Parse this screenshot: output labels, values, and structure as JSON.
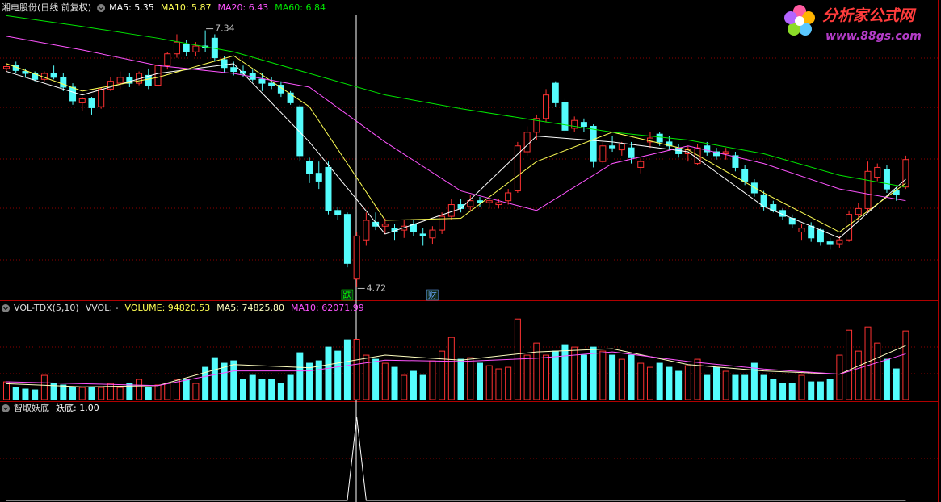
{
  "chart_data": [
    {
      "type": "candlestick",
      "title": "湘电股份(日线 前复权)",
      "up_color": "#ff3232",
      "down_color": "#54fcfc",
      "ylim": [
        4.6,
        7.65
      ],
      "candles": [
        [
          6.95,
          7.0,
          6.92,
          6.97
        ],
        [
          6.98,
          7.02,
          6.9,
          6.93
        ],
        [
          6.92,
          6.95,
          6.86,
          6.9
        ],
        [
          6.9,
          6.92,
          6.82,
          6.84
        ],
        [
          6.84,
          6.92,
          6.82,
          6.9
        ],
        [
          6.9,
          6.98,
          6.84,
          6.86
        ],
        [
          6.86,
          6.9,
          6.72,
          6.76
        ],
        [
          6.76,
          6.8,
          6.58,
          6.62
        ],
        [
          6.6,
          6.66,
          6.52,
          6.64
        ],
        [
          6.64,
          6.66,
          6.48,
          6.55
        ],
        [
          6.56,
          6.76,
          6.54,
          6.74
        ],
        [
          6.74,
          6.86,
          6.72,
          6.82
        ],
        [
          6.8,
          6.92,
          6.74,
          6.86
        ],
        [
          6.86,
          6.9,
          6.76,
          6.8
        ],
        [
          6.8,
          6.92,
          6.78,
          6.9
        ],
        [
          6.88,
          6.95,
          6.74,
          6.78
        ],
        [
          6.78,
          7.0,
          6.76,
          6.98
        ],
        [
          6.98,
          7.12,
          6.94,
          7.1
        ],
        [
          7.1,
          7.3,
          7.06,
          7.22
        ],
        [
          7.2,
          7.24,
          7.08,
          7.12
        ],
        [
          7.12,
          7.22,
          7.08,
          7.18
        ],
        [
          7.18,
          7.34,
          7.12,
          7.16
        ],
        [
          7.26,
          7.3,
          7.02,
          7.06
        ],
        [
          7.04,
          7.08,
          6.9,
          6.96
        ],
        [
          6.96,
          7.02,
          6.88,
          6.92
        ],
        [
          6.92,
          6.98,
          6.86,
          6.9
        ],
        [
          6.9,
          6.94,
          6.82,
          6.84
        ],
        [
          6.84,
          6.9,
          6.72,
          6.8
        ],
        [
          6.8,
          6.86,
          6.74,
          6.78
        ],
        [
          6.78,
          6.82,
          6.66,
          6.7
        ],
        [
          6.7,
          6.72,
          6.58,
          6.6
        ],
        [
          6.56,
          6.58,
          6.0,
          6.06
        ],
        [
          6.0,
          6.04,
          5.78,
          5.88
        ],
        [
          5.88,
          6.0,
          5.72,
          5.8
        ],
        [
          5.94,
          6.0,
          5.46,
          5.5
        ],
        [
          5.5,
          5.54,
          5.4,
          5.46
        ],
        [
          5.46,
          5.48,
          4.92,
          4.96
        ],
        [
          4.8,
          5.28,
          4.72,
          5.24
        ],
        [
          5.2,
          5.48,
          5.14,
          5.4
        ],
        [
          5.38,
          5.48,
          5.3,
          5.34
        ],
        [
          5.34,
          5.42,
          5.26,
          5.36
        ],
        [
          5.32,
          5.36,
          5.2,
          5.28
        ],
        [
          5.3,
          5.4,
          5.22,
          5.34
        ],
        [
          5.36,
          5.4,
          5.24,
          5.28
        ],
        [
          5.26,
          5.32,
          5.14,
          5.24
        ],
        [
          5.22,
          5.34,
          5.16,
          5.3
        ],
        [
          5.3,
          5.48,
          5.26,
          5.44
        ],
        [
          5.44,
          5.62,
          5.4,
          5.56
        ],
        [
          5.56,
          5.62,
          5.48,
          5.52
        ],
        [
          5.54,
          5.66,
          5.5,
          5.6
        ],
        [
          5.6,
          5.64,
          5.54,
          5.58
        ],
        [
          5.58,
          5.62,
          5.52,
          5.6
        ],
        [
          5.56,
          5.62,
          5.52,
          5.58
        ],
        [
          5.6,
          5.72,
          5.56,
          5.68
        ],
        [
          5.7,
          6.2,
          5.68,
          6.16
        ],
        [
          6.1,
          6.36,
          6.06,
          6.3
        ],
        [
          6.3,
          6.48,
          6.22,
          6.44
        ],
        [
          6.44,
          6.74,
          6.4,
          6.68
        ],
        [
          6.8,
          6.82,
          6.56,
          6.6
        ],
        [
          6.6,
          6.64,
          6.28,
          6.32
        ],
        [
          6.34,
          6.46,
          6.3,
          6.42
        ],
        [
          6.4,
          6.44,
          6.3,
          6.36
        ],
        [
          6.36,
          6.38,
          5.94,
          6.0
        ],
        [
          6.0,
          6.2,
          5.98,
          6.16
        ],
        [
          6.16,
          6.26,
          6.1,
          6.14
        ],
        [
          6.12,
          6.2,
          6.06,
          6.18
        ],
        [
          6.14,
          6.2,
          5.98,
          6.04
        ],
        [
          5.94,
          6.02,
          5.88,
          6.0
        ],
        [
          6.2,
          6.3,
          6.14,
          6.24
        ],
        [
          6.28,
          6.3,
          6.16,
          6.2
        ],
        [
          6.2,
          6.26,
          6.12,
          6.16
        ],
        [
          6.14,
          6.18,
          6.04,
          6.08
        ],
        [
          6.08,
          6.16,
          6.0,
          6.12
        ],
        [
          5.98,
          6.18,
          5.96,
          6.14
        ],
        [
          6.16,
          6.2,
          6.06,
          6.1
        ],
        [
          6.1,
          6.14,
          6.02,
          6.06
        ],
        [
          6.08,
          6.14,
          6.02,
          6.1
        ],
        [
          6.06,
          6.1,
          5.9,
          5.94
        ],
        [
          5.92,
          5.96,
          5.76,
          5.8
        ],
        [
          5.78,
          5.82,
          5.64,
          5.68
        ],
        [
          5.66,
          5.7,
          5.5,
          5.54
        ],
        [
          5.56,
          5.6,
          5.48,
          5.5
        ],
        [
          5.5,
          5.52,
          5.4,
          5.44
        ],
        [
          5.42,
          5.46,
          5.32,
          5.36
        ],
        [
          5.28,
          5.36,
          5.2,
          5.32
        ],
        [
          5.34,
          5.38,
          5.18,
          5.22
        ],
        [
          5.3,
          5.32,
          5.14,
          5.18
        ],
        [
          5.18,
          5.22,
          5.1,
          5.16
        ],
        [
          5.16,
          5.24,
          5.12,
          5.2
        ],
        [
          5.2,
          5.5,
          5.18,
          5.46
        ],
        [
          5.46,
          5.58,
          5.4,
          5.52
        ],
        [
          5.52,
          6.0,
          5.48,
          5.9
        ],
        [
          5.84,
          5.98,
          5.8,
          5.94
        ],
        [
          5.92,
          5.96,
          5.68,
          5.72
        ],
        [
          5.7,
          5.74,
          5.6,
          5.66
        ],
        [
          5.74,
          6.06,
          5.72,
          6.02
        ]
      ],
      "series": [
        {
          "name": "MA5: 5.35",
          "color": "#ffffff",
          "x": [
            0,
            8,
            16,
            24,
            32,
            40,
            48,
            56,
            64,
            72,
            80,
            88,
            95
          ],
          "values": [
            6.92,
            6.68,
            6.9,
            7.0,
            6.2,
            5.26,
            5.52,
            6.26,
            6.2,
            6.1,
            5.54,
            5.22,
            5.82
          ]
        },
        {
          "name": "MA10: 5.87",
          "color": "#ffff54",
          "x": [
            0,
            8,
            16,
            24,
            32,
            40,
            48,
            56,
            64,
            72,
            80,
            88,
            95
          ],
          "values": [
            7.0,
            6.72,
            6.86,
            7.08,
            6.56,
            5.4,
            5.42,
            6.0,
            6.3,
            6.12,
            5.68,
            5.28,
            5.78
          ]
        },
        {
          "name": "MA20: 6.43",
          "color": "#ff54ff",
          "x": [
            0,
            8,
            16,
            24,
            32,
            40,
            48,
            56,
            64,
            72,
            80,
            88,
            95
          ],
          "values": [
            7.28,
            7.14,
            6.98,
            6.9,
            6.76,
            6.2,
            5.7,
            5.5,
            5.98,
            6.16,
            5.98,
            5.72,
            5.6
          ]
        },
        {
          "name": "MA60: 6.84",
          "color": "#00e600",
          "x": [
            0,
            8,
            16,
            24,
            32,
            40,
            48,
            56,
            64,
            72,
            80,
            88,
            95
          ],
          "values": [
            7.49,
            7.38,
            7.26,
            7.12,
            6.9,
            6.68,
            6.54,
            6.42,
            6.3,
            6.22,
            6.08,
            5.86,
            5.74
          ]
        }
      ],
      "annotations": [
        {
          "value": 7.34,
          "label": "7.34"
        },
        {
          "value": 4.72,
          "label": "4.72"
        }
      ],
      "events": [
        {
          "label": "跌",
          "at": 36,
          "color": "#00ff00"
        },
        {
          "label": "财",
          "at": 45,
          "color": "#6aa8ff"
        }
      ]
    },
    {
      "type": "volume",
      "title": "VOL-TDX(5,10)",
      "subtitle": "VVOL: -",
      "ylim": [
        0,
        140000
      ],
      "series": [
        {
          "name": "VOLUME: 94820.53",
          "color": "#ffff54",
          "values": [
            27900,
            19000,
            16500,
            15200,
            38100,
            25400,
            22900,
            19000,
            19000,
            19000,
            19000,
            25400,
            19000,
            25400,
            31800,
            19000,
            22900,
            25400,
            31800,
            31800,
            25400,
            50800,
            66000,
            57200,
            61000,
            31800,
            38100,
            31800,
            31800,
            25400,
            38100,
            73700,
            57200,
            61000,
            82600,
            76200,
            94000,
            94820.53,
            69900,
            63500,
            57200,
            50800,
            38100,
            44500,
            38100,
            61000,
            76200,
            97800,
            63500,
            66000,
            57200,
            53300,
            48300,
            50800,
            127000,
            69900,
            88900,
            69900,
            76200,
            86400,
            82600,
            69900,
            82600,
            76200,
            69900,
            63500,
            69900,
            57200,
            50800,
            57200,
            50800,
            44500,
            53300,
            63500,
            38100,
            50800,
            44500,
            38100,
            38100,
            57200,
            38100,
            31800,
            25400,
            25400,
            38100,
            27900,
            27900,
            31800,
            69900,
            109200,
            76200,
            114300,
            88900,
            63500,
            48300,
            108000
          ]
        },
        {
          "name": "MA5: 74825.80",
          "color": "#ffffc0",
          "x": [
            0,
            8,
            16,
            24,
            32,
            40,
            48,
            56,
            64,
            72,
            80,
            88,
            95
          ],
          "values": [
            25000,
            20000,
            22000,
            55000,
            50000,
            70000,
            62000,
            75000,
            80000,
            55000,
            45000,
            40000,
            85000
          ]
        },
        {
          "name": "MA10: 62071.99",
          "color": "#ff54ff",
          "x": [
            0,
            8,
            16,
            24,
            32,
            40,
            48,
            56,
            64,
            72,
            80,
            88,
            95
          ],
          "values": [
            28000,
            25000,
            22000,
            45000,
            45000,
            62000,
            60000,
            65000,
            75000,
            60000,
            48000,
            40000,
            72000
          ]
        }
      ]
    },
    {
      "type": "line",
      "title": "智取妖底",
      "ylim": [
        0,
        1
      ],
      "series": [
        {
          "name": "妖底: 1.00",
          "color": "#ffffff",
          "x": [
            0,
            36,
            37,
            38,
            95
          ],
          "values": [
            0,
            0,
            1,
            0,
            0
          ]
        }
      ]
    }
  ],
  "logo": {
    "title": "分析家公式网",
    "url": "www.88gs.com"
  }
}
